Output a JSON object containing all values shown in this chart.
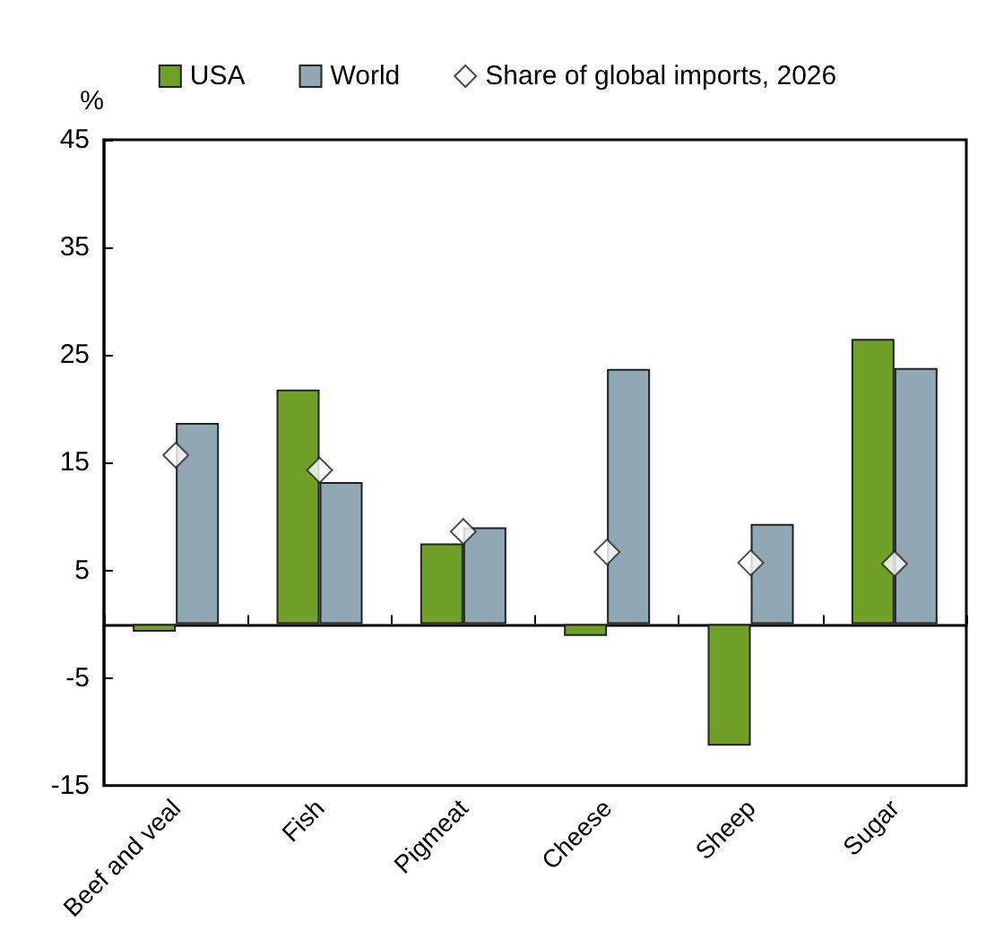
{
  "chart_data": {
    "type": "bar",
    "ylabel": "%",
    "categories": [
      "Beef and veal",
      "Fish",
      "Pigmeat",
      "Cheese",
      "Sheep",
      "Sugar"
    ],
    "series": [
      {
        "name": "USA",
        "color": "#70a028",
        "values": [
          -0.7,
          21.8,
          7.5,
          -1.1,
          -11.3,
          26.5
        ]
      },
      {
        "name": "World",
        "color": "#91a7b3",
        "values": [
          18.7,
          13.2,
          9.0,
          23.7,
          9.3,
          23.8
        ]
      },
      {
        "name": "Share of global imports, 2026",
        "type": "scatter",
        "color": "#ffffff",
        "marker": "diamond",
        "values": [
          15.7,
          14.3,
          8.6,
          6.7,
          5.7,
          5.6
        ]
      }
    ],
    "ylim": [
      -15,
      45
    ],
    "yticks": [
      -15,
      -5,
      5,
      15,
      25,
      35,
      45
    ],
    "grid": false,
    "legend": "top"
  }
}
